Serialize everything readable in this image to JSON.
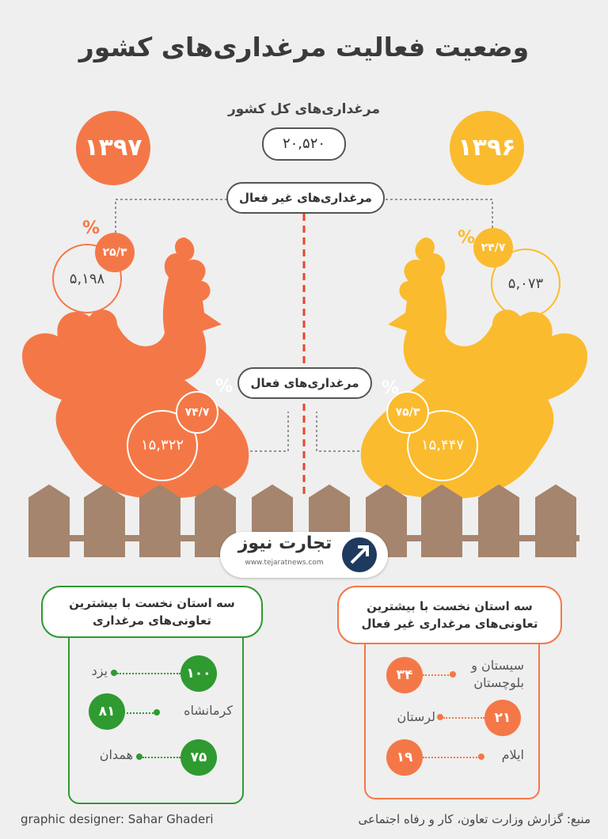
{
  "title": "وضعیت فعالیت مرغداری‌های کشور",
  "total": {
    "label": "مرغداری‌های کل کشور",
    "value": "۲۰,۵۲۰"
  },
  "inactive_label": "مرغداری‌های غیر فعال",
  "active_label": "مرغداری‌های فعال",
  "years": {
    "left": {
      "year": "۱۳۹۷",
      "inactive_value": "۵,۱۹۸",
      "inactive_pct": "۲۵/۳",
      "active_value": "۱۵,۳۲۲",
      "active_pct": "۷۴/۷",
      "color": "#f47847"
    },
    "right": {
      "year": "۱۳۹۶",
      "inactive_value": "۵,۰۷۳",
      "inactive_pct": "۲۴/۷",
      "active_value": "۱۵,۴۴۷",
      "active_pct": "۷۵/۳",
      "color": "#fbbb2e"
    }
  },
  "percent_sign": "%",
  "logo": {
    "name": "تجارت نیوز",
    "url": "www.tejaratnews.com"
  },
  "active_box": {
    "title": "سه استان نخست با بیشترین تعاونی‌های مرغداری",
    "color": "#2f9a2f",
    "rows": [
      {
        "province": "یزد",
        "value": "۱۰۰"
      },
      {
        "province": "کرمانشاه",
        "value": "۸۱"
      },
      {
        "province": "همدان",
        "value": "۷۵"
      }
    ]
  },
  "inactive_box": {
    "title": "سه استان نخست با بیشترین تعاونی‌های مرغداری غیر فعال",
    "color": "#f47847",
    "rows": [
      {
        "province": "سیستان و بلوچستان",
        "value": "۳۴"
      },
      {
        "province": "لرستان",
        "value": "۲۱"
      },
      {
        "province": "ایلام",
        "value": "۱۹"
      }
    ]
  },
  "footer": {
    "designer": "graphic designer: Sahar Ghaderi",
    "source": "منبع: گزارش وزارت تعاون، کار و رفاه اجتماعی"
  }
}
